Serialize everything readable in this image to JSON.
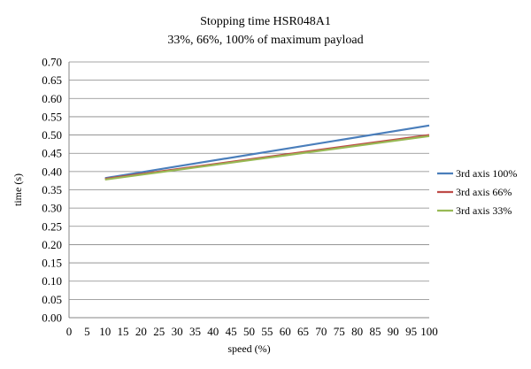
{
  "chart_data": {
    "type": "line",
    "title": "Stopping time HSR048A1",
    "subtitle": "33%, 66%, 100% of maximum payload",
    "xlabel": "speed (%)",
    "ylabel": "time (s)",
    "x_ticks": [
      "0",
      "5",
      "10",
      "15",
      "20",
      "25",
      "30",
      "35",
      "40",
      "45",
      "50",
      "55",
      "60",
      "65",
      "70",
      "75",
      "80",
      "85",
      "90",
      "95",
      "100"
    ],
    "y_ticks": [
      "0.00",
      "0.05",
      "0.10",
      "0.15",
      "0.20",
      "0.25",
      "0.30",
      "0.35",
      "0.40",
      "0.45",
      "0.50",
      "0.55",
      "0.60",
      "0.65",
      "0.70"
    ],
    "xlim": [
      0,
      100
    ],
    "ylim": [
      0,
      0.7
    ],
    "grid": "horizontal",
    "legend_position": "right",
    "series": [
      {
        "name": "3rd axis 100%",
        "color": "#4a7ebb",
        "x": [
          10,
          100
        ],
        "values": [
          0.382,
          0.526
        ]
      },
      {
        "name": "3rd axis 66%",
        "color": "#be4b48",
        "x": [
          10,
          100
        ],
        "values": [
          0.38,
          0.5
        ]
      },
      {
        "name": "3rd axis 33%",
        "color": "#98b954",
        "x": [
          10,
          100
        ],
        "values": [
          0.378,
          0.497
        ]
      }
    ]
  }
}
